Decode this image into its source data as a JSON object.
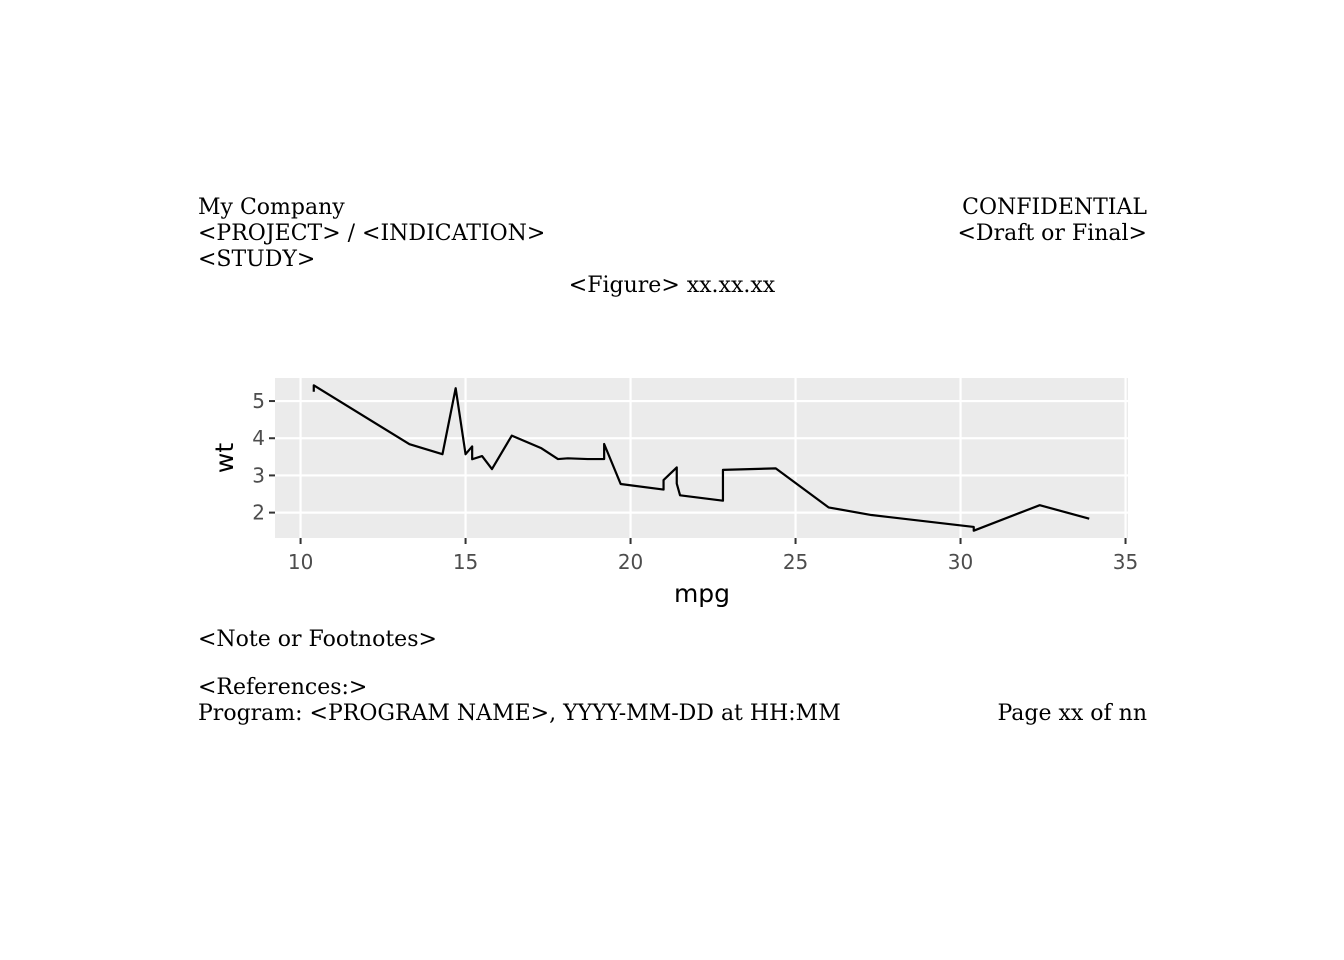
{
  "header": {
    "company": "My Company",
    "project": "<PROJECT> / <INDICATION>",
    "study": "<STUDY>",
    "confidential": "CONFIDENTIAL",
    "status": "<Draft or Final>",
    "figure_title": "<Figure> xx.xx.xx"
  },
  "chart_data": {
    "type": "line",
    "x_label": "mpg",
    "y_label": "wt",
    "color": "#000000",
    "grid": true,
    "x": [
      10.4,
      10.4,
      13.3,
      14.3,
      14.7,
      15.0,
      15.2,
      15.2,
      15.5,
      15.8,
      16.4,
      17.3,
      17.8,
      18.1,
      18.7,
      19.2,
      19.2,
      19.7,
      21.0,
      21.0,
      21.4,
      21.4,
      21.5,
      22.8,
      22.8,
      24.4,
      26.0,
      27.3,
      30.4,
      30.4,
      32.4,
      33.9
    ],
    "y": [
      5.25,
      5.424,
      3.84,
      3.57,
      5.345,
      3.57,
      3.78,
      3.435,
      3.52,
      3.17,
      4.07,
      3.73,
      3.44,
      3.46,
      3.44,
      3.44,
      3.845,
      2.77,
      2.62,
      2.875,
      3.215,
      2.78,
      2.465,
      2.32,
      3.15,
      3.19,
      2.14,
      1.935,
      1.615,
      1.513,
      2.2,
      1.835
    ],
    "xlim": [
      9.225,
      35.075
    ],
    "ylim": [
      1.317,
      5.62
    ],
    "xticks": [
      10,
      15,
      20,
      25,
      30,
      35
    ],
    "yticks": [
      2,
      3,
      4,
      5
    ]
  },
  "footer": {
    "note": "<Note or Footnotes>",
    "references": "<References:>",
    "program": "Program: <PROGRAM NAME>, YYYY-MM-DD at HH:MM",
    "page": "Page xx of nn"
  }
}
